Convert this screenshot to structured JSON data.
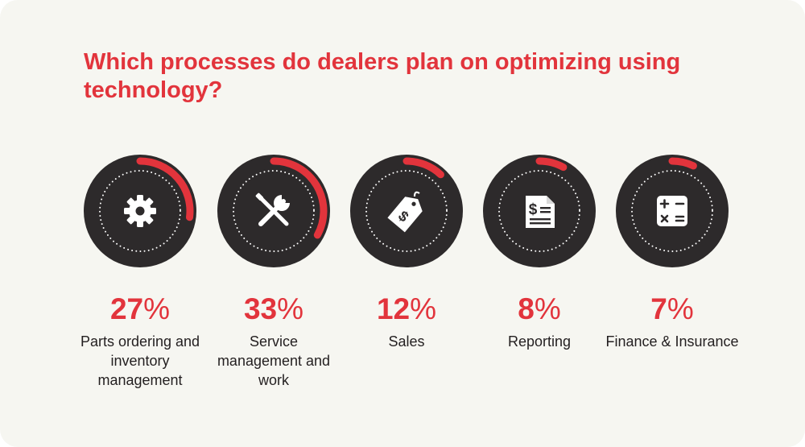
{
  "title": "Which processes do dealers plan on optimizing using technology?",
  "colors": {
    "accent": "#e2343c",
    "circle": "#2d2a2b",
    "dots": "#ffffff",
    "background": "#f6f6f1",
    "text": "#231f20"
  },
  "chart_data": {
    "type": "bar",
    "title": "Which processes do dealers plan on optimizing using technology?",
    "categories": [
      "Parts ordering and inventory management",
      "Service management and work",
      "Sales",
      "Reporting",
      "Finance & Insurance"
    ],
    "values": [
      27,
      33,
      12,
      8,
      7
    ],
    "unit": "%",
    "ylim": [
      0,
      100
    ]
  },
  "items": [
    {
      "icon": "gear-icon",
      "value": 27,
      "value_text": "27",
      "unit": "%",
      "label": "Parts ordering and inventory management"
    },
    {
      "icon": "tools-icon",
      "value": 33,
      "value_text": "33",
      "unit": "%",
      "label": "Service management and work"
    },
    {
      "icon": "price-tag-icon",
      "value": 12,
      "value_text": "12",
      "unit": "%",
      "label": "Sales"
    },
    {
      "icon": "document-report-icon",
      "value": 8,
      "value_text": "8",
      "unit": "%",
      "label": "Reporting"
    },
    {
      "icon": "calculator-icon",
      "value": 7,
      "value_text": "7",
      "unit": "%",
      "label": "Finance & Insurance"
    }
  ]
}
